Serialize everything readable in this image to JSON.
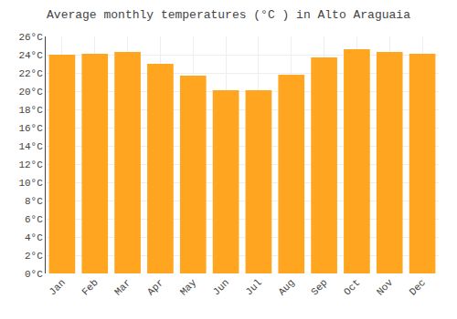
{
  "chart_data": {
    "type": "bar",
    "title": "Average monthly temperatures (°C ) in Alto Araguaia",
    "categories": [
      "Jan",
      "Feb",
      "Mar",
      "Apr",
      "May",
      "Jun",
      "Jul",
      "Aug",
      "Sep",
      "Oct",
      "Nov",
      "Dec"
    ],
    "values": [
      24.0,
      24.1,
      24.3,
      23.0,
      21.7,
      20.1,
      20.1,
      21.8,
      23.7,
      24.6,
      24.3,
      24.1
    ],
    "color": "#FFA520",
    "ylim": [
      0,
      26
    ],
    "yticks": [
      {
        "value": 0,
        "label": "0°C"
      },
      {
        "value": 2,
        "label": "2°C"
      },
      {
        "value": 4,
        "label": "4°C"
      },
      {
        "value": 6,
        "label": "6°C"
      },
      {
        "value": 8,
        "label": "8°C"
      },
      {
        "value": 10,
        "label": "10°C"
      },
      {
        "value": 12,
        "label": "12°C"
      },
      {
        "value": 14,
        "label": "14°C"
      },
      {
        "value": 16,
        "label": "16°C"
      },
      {
        "value": 18,
        "label": "18°C"
      },
      {
        "value": 20,
        "label": "20°C"
      },
      {
        "value": 22,
        "label": "22°C"
      },
      {
        "value": 24,
        "label": "24°C"
      },
      {
        "value": 26,
        "label": "26°C"
      }
    ],
    "grid": true
  }
}
